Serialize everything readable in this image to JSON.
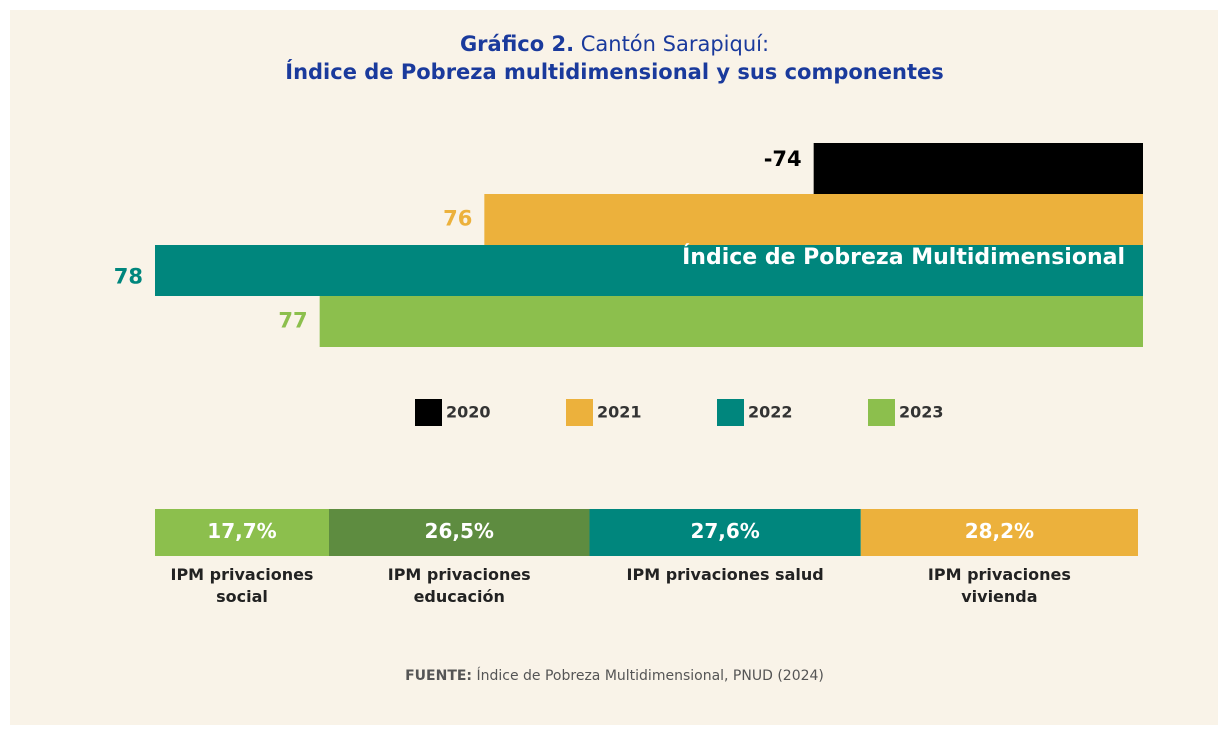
{
  "header": {
    "label": "Gráfico 2.",
    "title": "Cantón Sarapiquí:",
    "subtitle": "Índice de Pobreza multidimensional y sus componentes"
  },
  "chart_data": [
    {
      "type": "hbar",
      "xlim": [
        78,
        72
      ],
      "annotation": "Índice de Pobreza Multidimensional",
      "series": [
        {
          "name": "2020",
          "color": "#000000",
          "values": [
            74
          ],
          "value_labels": [
            "-74"
          ]
        },
        {
          "name": "2021",
          "color": "#ecb13c",
          "values": [
            76
          ],
          "value_labels": [
            "76"
          ]
        },
        {
          "name": "2022",
          "color": "#00867d",
          "values": [
            78
          ],
          "value_labels": [
            "78"
          ]
        },
        {
          "name": "2023",
          "color": "#8cbf4d",
          "values": [
            77
          ],
          "value_labels": [
            "77"
          ]
        }
      ]
    },
    {
      "type": "stacked",
      "xlim": [
        0,
        100
      ],
      "categories": [
        "IPM privaciones social",
        "IPM privaciones educación",
        "IPM privaciones salud",
        "IPM privaciones vivienda"
      ],
      "values": [
        17.7,
        26.5,
        27.6,
        28.2
      ],
      "value_labels": [
        "17,7%",
        "26,5%",
        "27,6%",
        "28,2%"
      ],
      "colors": [
        "#8cbf4d",
        "#5e8c40",
        "#00867d",
        "#ecb13c"
      ]
    }
  ],
  "source": {
    "label": "FUENTE:",
    "text": "Índice de Pobreza Multidimensional, PNUD (2024)"
  }
}
